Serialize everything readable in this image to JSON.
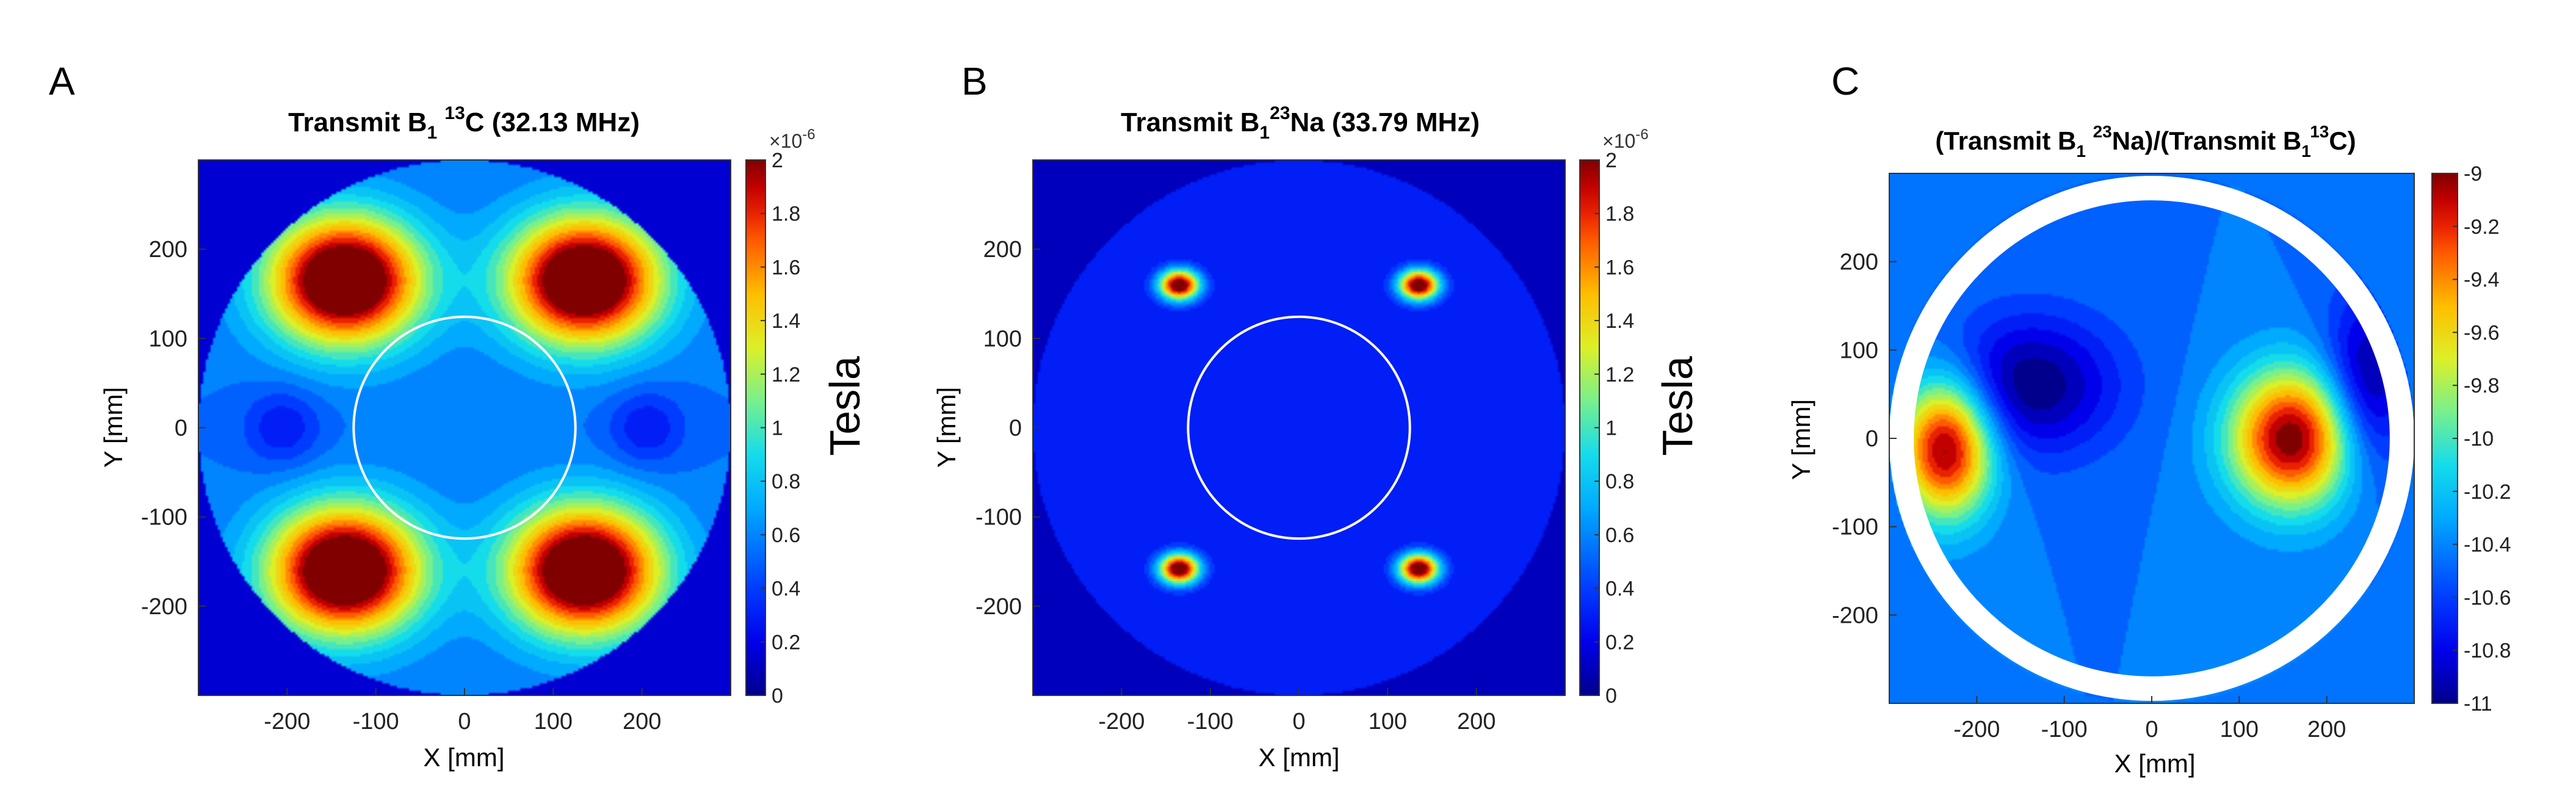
{
  "chart_data": [
    {
      "panel_label": "A",
      "type": "heatmap",
      "title": {
        "pre": "Transmit B",
        "sub": "1",
        "mid": " ",
        "sup": "13",
        "post": "C (32.13 MHz)"
      },
      "xlabel": "X [mm]",
      "ylabel": "Y [mm]",
      "xlim": [
        -300,
        300
      ],
      "ylim": [
        -300,
        300
      ],
      "xticks": [
        -200,
        -100,
        0,
        100,
        200
      ],
      "yticks": [
        -200,
        -100,
        0,
        100,
        200
      ],
      "colorbar": {
        "min": 0,
        "max": 2,
        "ticks": [
          0,
          0.2,
          0.4,
          0.6,
          0.8,
          1,
          1.2,
          1.4,
          1.6,
          1.8,
          2
        ],
        "multiplier_base": "×10",
        "multiplier_exp": "-6",
        "label": "Tesla"
      },
      "field": {
        "domain_radius": 300,
        "background": 0.15,
        "base": 0.55,
        "hotspots": [
          {
            "x": -135,
            "y": 165,
            "amp": 1.9,
            "sx": 60,
            "sy": 50
          },
          {
            "x": 135,
            "y": 165,
            "amp": 1.9,
            "sx": 60,
            "sy": 50
          },
          {
            "x": -135,
            "y": -160,
            "amp": 1.9,
            "sx": 60,
            "sy": 50
          },
          {
            "x": 135,
            "y": -160,
            "amp": 1.9,
            "sx": 60,
            "sy": 50
          }
        ],
        "coldspots": [
          {
            "x": -205,
            "y": 0,
            "amp": 0.3,
            "sx": 30,
            "sy": 30
          },
          {
            "x": 205,
            "y": 0,
            "amp": 0.3,
            "sx": 30,
            "sy": 30
          }
        ]
      },
      "overlay_circle_radius": 125
    },
    {
      "panel_label": "B",
      "type": "heatmap",
      "title": {
        "pre": "Transmit B",
        "sub": "1",
        "mid": "",
        "sup": "23",
        "post": "Na (33.79 MHz)"
      },
      "xlabel": "X [mm]",
      "ylabel": "Y [mm]",
      "xlim": [
        -300,
        300
      ],
      "ylim": [
        -300,
        300
      ],
      "xticks": [
        -200,
        -100,
        0,
        100,
        200
      ],
      "yticks": [
        -200,
        -100,
        0,
        100,
        200
      ],
      "colorbar": {
        "min": 0,
        "max": 2,
        "ticks": [
          0,
          0.2,
          0.4,
          0.6,
          0.8,
          1,
          1.2,
          1.4,
          1.6,
          1.8,
          2
        ],
        "multiplier_base": "×10",
        "multiplier_exp": "-6",
        "label": "Tesla"
      },
      "field": {
        "domain_radius": 300,
        "background": 0.1,
        "base": 0.25,
        "hotspots": [
          {
            "x": -135,
            "y": 160,
            "amp": 1.95,
            "sx": 16,
            "sy": 12
          },
          {
            "x": 135,
            "y": 160,
            "amp": 1.95,
            "sx": 16,
            "sy": 12
          },
          {
            "x": -135,
            "y": -158,
            "amp": 1.95,
            "sx": 16,
            "sy": 12
          },
          {
            "x": 135,
            "y": -158,
            "amp": 1.95,
            "sx": 16,
            "sy": 12
          }
        ],
        "coldspots": []
      },
      "overlay_circle_radius": 125
    },
    {
      "panel_label": "C",
      "type": "heatmap",
      "title": {
        "pre": "(Transmit B",
        "sub": "1",
        "mid": " ",
        "sup": "23",
        "post": "Na)/(Transmit B",
        "sub2": "1",
        "sup2": "13",
        "post2": "C)"
      },
      "xlabel": "X [mm]",
      "ylabel": "Y [mm]",
      "xlim": [
        -300,
        300
      ],
      "ylim": [
        -300,
        300
      ],
      "xticks": [
        -200,
        -100,
        0,
        100,
        200
      ],
      "yticks": [
        -200,
        -100,
        0,
        100,
        200
      ],
      "colorbar": {
        "min": -11,
        "max": -9,
        "ticks": [
          -11,
          -10.8,
          -10.6,
          -10.4,
          -10.2,
          -10,
          -9.8,
          -9.6,
          -9.4,
          -9.2,
          -9
        ],
        "label": ""
      },
      "field": {
        "domain_radius": 300,
        "background": -10.45,
        "base": -10.45,
        "hotspots": [
          {
            "x": -235,
            "y": -10,
            "amp": 1.5,
            "sx": 38,
            "sy": 55
          },
          {
            "x": 160,
            "y": 0,
            "amp": 1.5,
            "sx": 50,
            "sy": 55
          }
        ],
        "coldspots": [
          {
            "x": -140,
            "y": 60,
            "amp": 0.6,
            "sx": 70,
            "sy": 55
          },
          {
            "x": 245,
            "y": 60,
            "amp": 0.6,
            "sx": 35,
            "sy": 70
          }
        ]
      },
      "white_ring": {
        "outer_radius": 300,
        "inner_radius": 272
      }
    }
  ]
}
